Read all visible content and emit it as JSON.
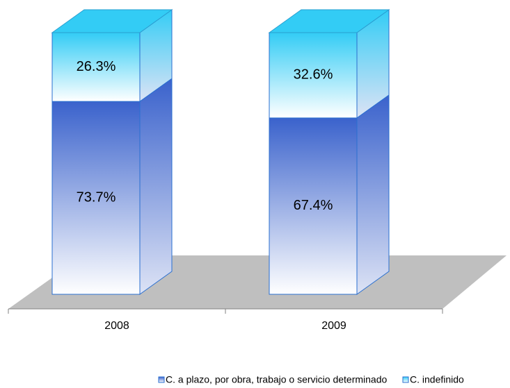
{
  "chart_data": {
    "type": "bar3d_stacked",
    "categories": [
      "2008",
      "2009"
    ],
    "series": [
      {
        "name": "C. a plazo, por obra, trabajo o servicio determinado",
        "color": "#3a62cc",
        "values": [
          73.7,
          67.4
        ],
        "value_labels": [
          "73.7%",
          "67.4%"
        ]
      },
      {
        "name": "C. indefinido",
        "color": "#33ccf5",
        "values": [
          26.3,
          32.6
        ],
        "value_labels": [
          "26.3%",
          "32.6%"
        ]
      }
    ],
    "ylim": [
      0,
      100
    ],
    "legend": "bottom"
  }
}
